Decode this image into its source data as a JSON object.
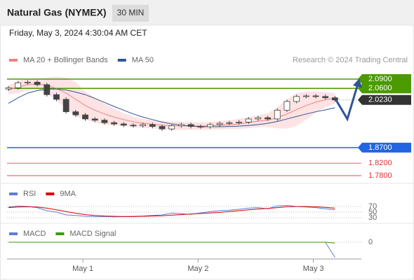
{
  "chart_data": [
    {
      "type": "candlestick",
      "title": "Natural Gas (NYMEX)",
      "interval": "30 MIN",
      "date": "Friday, May 3, 2024 4:30:04 AM CET",
      "credit": "Research © 2024 Trading Central",
      "x": [
        0,
        4,
        8,
        12,
        16,
        20,
        24,
        28,
        32,
        36,
        40,
        44,
        48,
        52,
        56,
        60,
        64,
        68,
        72,
        76,
        80,
        84,
        88,
        92,
        96,
        100,
        104,
        108,
        112,
        116,
        120,
        124,
        128,
        132,
        136
      ],
      "open": [
        2.058,
        2.062,
        2.078,
        2.08,
        2.072,
        2.04,
        2.025,
        1.985,
        1.975,
        1.962,
        1.958,
        1.95,
        1.946,
        1.942,
        1.94,
        1.944,
        1.938,
        1.93,
        1.94,
        1.944,
        1.938,
        1.937,
        1.944,
        1.948,
        1.95,
        1.952,
        1.962,
        1.966,
        1.962,
        1.99,
        2.018,
        2.034,
        2.036,
        2.034,
        2.03
      ],
      "high": [
        2.068,
        2.084,
        2.086,
        2.086,
        2.078,
        2.046,
        2.031,
        1.991,
        1.981,
        1.968,
        1.964,
        1.956,
        1.952,
        1.948,
        1.95,
        1.95,
        1.944,
        1.946,
        1.95,
        1.95,
        1.944,
        1.95,
        1.954,
        1.956,
        1.958,
        1.968,
        1.972,
        1.972,
        1.996,
        2.024,
        2.04,
        2.042,
        2.042,
        2.04,
        2.036
      ],
      "low": [
        2.052,
        2.056,
        2.072,
        2.066,
        2.034,
        2.019,
        1.979,
        1.969,
        1.956,
        1.952,
        1.944,
        1.94,
        1.936,
        1.934,
        1.934,
        1.932,
        1.924,
        1.924,
        1.934,
        1.932,
        1.931,
        1.931,
        1.938,
        1.942,
        1.944,
        1.946,
        1.956,
        1.956,
        1.956,
        1.984,
        2.012,
        2.028,
        2.028,
        2.024,
        2.017
      ],
      "close": [
        2.062,
        2.078,
        2.08,
        2.072,
        2.04,
        2.025,
        1.985,
        1.975,
        1.962,
        1.958,
        1.95,
        1.946,
        1.942,
        1.94,
        1.944,
        1.938,
        1.93,
        1.94,
        1.944,
        1.938,
        1.937,
        1.944,
        1.948,
        1.95,
        1.952,
        1.962,
        1.966,
        1.962,
        1.99,
        2.018,
        2.034,
        2.036,
        2.034,
        2.03,
        2.023
      ],
      "up_color": "#ffffff",
      "down_color": "#444444",
      "series": [
        {
          "name": "MA 20 + Bollinger Bands",
          "color": "#f08080",
          "values": [
            2.055,
            2.065,
            2.072,
            2.075,
            2.07,
            2.06,
            2.045,
            2.025,
            2.005,
            1.99,
            1.978,
            1.968,
            1.96,
            1.953,
            1.948,
            1.945,
            1.942,
            1.94,
            1.94,
            1.94,
            1.939,
            1.94,
            1.942,
            1.944,
            1.946,
            1.95,
            1.955,
            1.958,
            1.966,
            1.978,
            1.992,
            2.005,
            2.016,
            2.024,
            2.028
          ]
        },
        {
          "name": "MA 50",
          "color": "#2f5597",
          "values": [
            2.012,
            2.03,
            2.045,
            2.053,
            2.058,
            2.058,
            2.055,
            2.048,
            2.04,
            2.028,
            2.015,
            2.002,
            1.99,
            1.978,
            1.968,
            1.96,
            1.952,
            1.946,
            1.942,
            1.939,
            1.937,
            1.937,
            1.937,
            1.938,
            1.939,
            1.941,
            1.944,
            1.948,
            1.954,
            1.962,
            1.97,
            1.978,
            1.985,
            1.991,
            1.998
          ]
        }
      ],
      "band": {
        "color": "#fcdcdc",
        "upper": [
          2.07,
          2.085,
          2.09,
          2.092,
          2.095,
          2.098,
          2.095,
          2.08,
          2.05,
          2.03,
          2.012,
          1.995,
          1.98,
          1.97,
          1.962,
          1.958,
          1.955,
          1.954,
          1.953,
          1.952,
          1.951,
          1.952,
          1.955,
          1.958,
          1.962,
          1.968,
          1.974,
          1.98,
          2.0,
          2.025,
          2.045,
          2.05,
          2.05,
          2.048,
          2.045
        ],
        "lower": [
          2.04,
          2.045,
          2.054,
          2.058,
          2.045,
          2.022,
          1.995,
          1.97,
          1.96,
          1.95,
          1.944,
          1.941,
          1.94,
          1.936,
          1.934,
          1.932,
          1.929,
          1.926,
          1.927,
          1.928,
          1.927,
          1.928,
          1.929,
          1.93,
          1.93,
          1.932,
          1.936,
          1.936,
          1.932,
          1.931,
          1.939,
          1.96,
          1.982,
          2.0,
          2.011
        ]
      },
      "levels": [
        {
          "value": 2.09,
          "label": "2.0900",
          "color": "#4a9a00",
          "style": "box"
        },
        {
          "value": 2.06,
          "label": "2.0600",
          "color": "#4a9a00",
          "style": "box"
        },
        {
          "value": 2.023,
          "label": "2.0230",
          "color": "#333333",
          "style": "current"
        },
        {
          "value": 1.87,
          "label": "1.8700",
          "color": "#2166e0",
          "style": "box"
        },
        {
          "value": 1.82,
          "label": "1.8200",
          "color": "#e03030",
          "style": "text"
        },
        {
          "value": 1.78,
          "label": "1.7800",
          "color": "#e03030",
          "style": "text"
        }
      ],
      "ylim": [
        1.77,
        2.1
      ],
      "xlim": [
        -0.6,
        147
      ],
      "xticks": [
        {
          "value": 31,
          "label": "May 1"
        },
        {
          "value": 79,
          "label": "May 2"
        },
        {
          "value": 127,
          "label": "May 3"
        }
      ]
    },
    {
      "type": "line",
      "ylim": [
        20,
        100
      ],
      "yticks": [
        70,
        50,
        30
      ],
      "series": [
        {
          "name": "RSI",
          "color": "#5b7fd6",
          "values": [
            68,
            72,
            70,
            66,
            55,
            50,
            40,
            38,
            35,
            34,
            34,
            33,
            34,
            35,
            36,
            38,
            40,
            46,
            44,
            42,
            47,
            52,
            55,
            57,
            60,
            64,
            66,
            62,
            72,
            74,
            70,
            68,
            66,
            62,
            58
          ]
        },
        {
          "name": "9MA",
          "color": "#e00000",
          "values": [
            66,
            68,
            69,
            68,
            64,
            58,
            52,
            46,
            41,
            38,
            36,
            35,
            34,
            34,
            35,
            36,
            37,
            39,
            41,
            43,
            45,
            47,
            49,
            52,
            55,
            58,
            61,
            63,
            66,
            69,
            70,
            70,
            69,
            67,
            64
          ]
        }
      ]
    },
    {
      "type": "line",
      "ylim": [
        -0.04,
        0.01
      ],
      "yticks": [
        0
      ],
      "series": [
        {
          "name": "MACD",
          "color": "#5b7fd6",
          "values": [
            0,
            0,
            0,
            0,
            0,
            0,
            0,
            0,
            0,
            0,
            0,
            0,
            0,
            0,
            0,
            0,
            0,
            0,
            0,
            0,
            0,
            0,
            0,
            0,
            0,
            0,
            0,
            0,
            0,
            0,
            0,
            0,
            0,
            0,
            -0.036
          ]
        },
        {
          "name": "MACD Signal",
          "color": "#3a9a00",
          "values": [
            0,
            0,
            0,
            0,
            0,
            0,
            0,
            0,
            0,
            0,
            0,
            0,
            0,
            0,
            0,
            0,
            0,
            0,
            0,
            0,
            0,
            0,
            0,
            0,
            0,
            0,
            0,
            0,
            0,
            0,
            0,
            0,
            0,
            0,
            -0.002
          ]
        }
      ]
    }
  ]
}
